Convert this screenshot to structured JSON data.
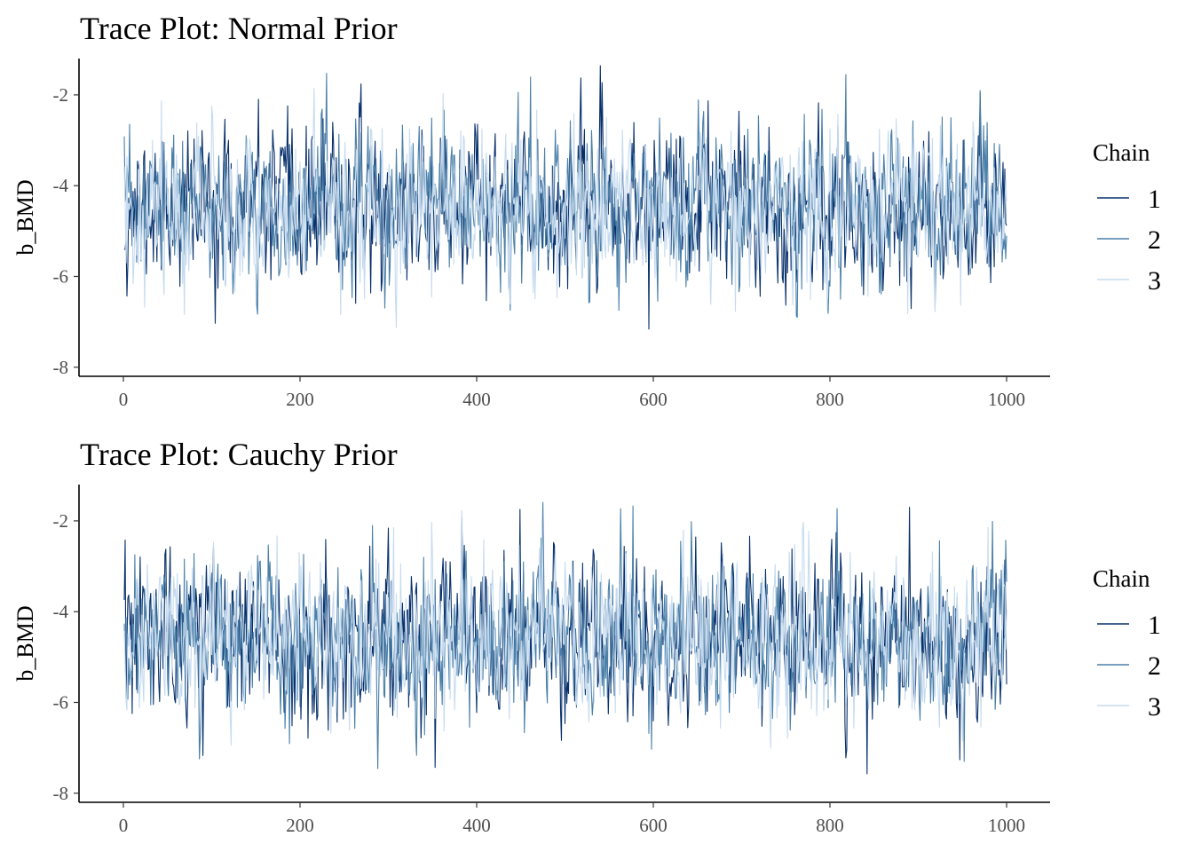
{
  "chart_data": [
    {
      "type": "line",
      "title": "Trace Plot: Normal Prior",
      "xlabel": "",
      "ylabel": "b_BMD",
      "xlim": [
        0,
        1000
      ],
      "ylim": [
        -8.2,
        -1.2
      ],
      "x_ticks": [
        "0",
        "200",
        "400",
        "600",
        "800",
        "1000"
      ],
      "y_ticks": [
        "-2",
        "-4",
        "-6",
        "-8"
      ],
      "legend": {
        "title": "Chain",
        "placement": "right",
        "entries": [
          "1",
          "2",
          "3"
        ]
      },
      "series": [
        {
          "name": "1",
          "color": "#08306b",
          "mean": -4.5,
          "sd": 0.8,
          "x_start": 1,
          "x_end": 1000,
          "seed": 11
        },
        {
          "name": "2",
          "color": "#4a7fa8",
          "mean": -4.5,
          "sd": 0.8,
          "x_start": 1,
          "x_end": 1000,
          "seed": 23
        },
        {
          "name": "3",
          "color": "#c6dbef",
          "mean": -4.5,
          "sd": 0.8,
          "x_start": 1,
          "x_end": 1000,
          "seed": 37
        }
      ]
    },
    {
      "type": "line",
      "title": "Trace Plot: Cauchy Prior",
      "xlabel": "",
      "ylabel": "b_BMD",
      "xlim": [
        0,
        1000
      ],
      "ylim": [
        -8.2,
        -1.2
      ],
      "x_ticks": [
        "0",
        "200",
        "400",
        "600",
        "800",
        "1000"
      ],
      "y_ticks": [
        "-2",
        "-4",
        "-6",
        "-8"
      ],
      "legend": {
        "title": "Chain",
        "placement": "right",
        "entries": [
          "1",
          "2",
          "3"
        ]
      },
      "series": [
        {
          "name": "1",
          "color": "#08306b",
          "mean": -4.6,
          "sd": 0.85,
          "x_start": 1,
          "x_end": 1000,
          "seed": 53
        },
        {
          "name": "2",
          "color": "#4a7fa8",
          "mean": -4.6,
          "sd": 0.85,
          "x_start": 1,
          "x_end": 1000,
          "seed": 71
        },
        {
          "name": "3",
          "color": "#c6dbef",
          "mean": -4.6,
          "sd": 0.85,
          "x_start": 1,
          "x_end": 1000,
          "seed": 97
        }
      ]
    }
  ]
}
